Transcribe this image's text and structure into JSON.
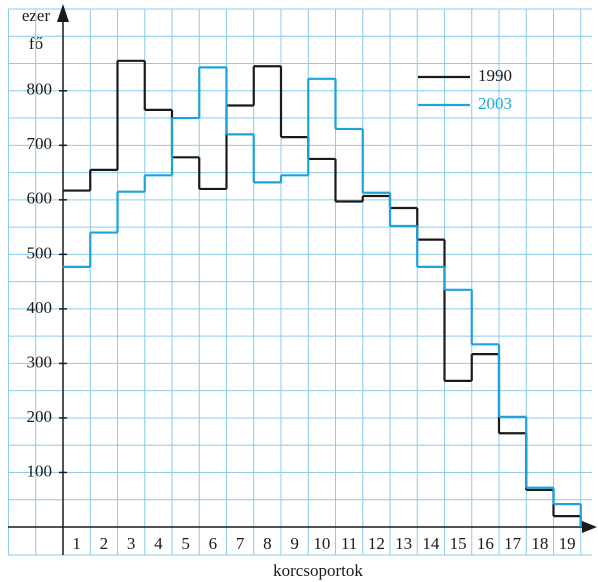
{
  "chart_data": {
    "type": "step",
    "y_label_lines": [
      "ezer",
      "fő"
    ],
    "x_label": "korcsoportok",
    "categories": [
      "1",
      "2",
      "3",
      "4",
      "5",
      "6",
      "7",
      "8",
      "9",
      "10",
      "11",
      "12",
      "13",
      "14",
      "15",
      "16",
      "17",
      "18",
      "19"
    ],
    "series": [
      {
        "name": "1990",
        "color": "#1a1a1a",
        "values": [
          617,
          655,
          855,
          765,
          678,
          620,
          773,
          845,
          715,
          675,
          597,
          607,
          585,
          527,
          268,
          317,
          172,
          68,
          20
        ]
      },
      {
        "name": "2003",
        "color": "#1ba3dc",
        "values": [
          477,
          540,
          615,
          645,
          750,
          843,
          720,
          632,
          645,
          822,
          730,
          613,
          552,
          477,
          435,
          335,
          202,
          72,
          42
        ]
      }
    ],
    "ylim": [
      0,
      950
    ],
    "yticks": [
      100,
      200,
      300,
      400,
      500,
      600,
      700,
      800
    ],
    "grid": true,
    "legend": "upper right"
  }
}
